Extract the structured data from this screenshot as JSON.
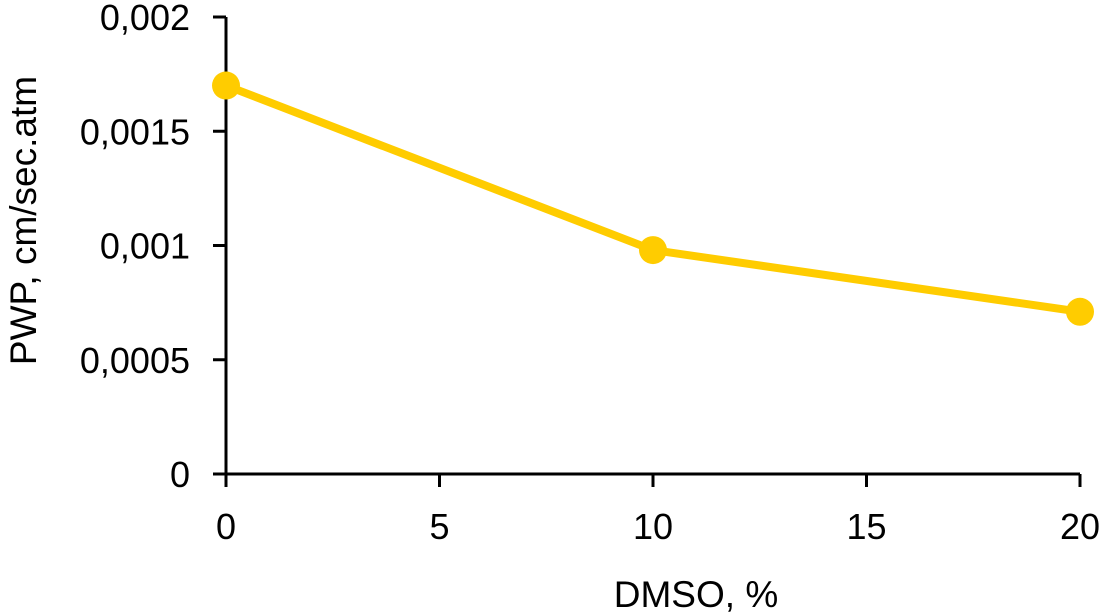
{
  "chart_data": {
    "type": "line",
    "title": "",
    "xlabel": "DMSO, %",
    "ylabel": "PWP, cm/sec.atm",
    "x": [
      0,
      10,
      20
    ],
    "series": [
      {
        "values": [
          0.0017,
          0.00098,
          0.00071
        ]
      }
    ],
    "xlim": [
      0,
      20
    ],
    "ylim": [
      0,
      0.002
    ],
    "x_ticks": [
      0,
      5,
      10,
      15,
      20
    ],
    "x_tick_labels": [
      "0",
      "5",
      "10",
      "15",
      "20"
    ],
    "y_ticks": [
      0,
      0.0005,
      0.001,
      0.0015,
      0.002
    ],
    "y_tick_labels": [
      "0",
      "0,0005",
      "0,001",
      "0,0015",
      "0,002"
    ],
    "grid": false,
    "legend": "none",
    "colors": {
      "series": "#FFCC00",
      "axis": "#000000"
    }
  }
}
